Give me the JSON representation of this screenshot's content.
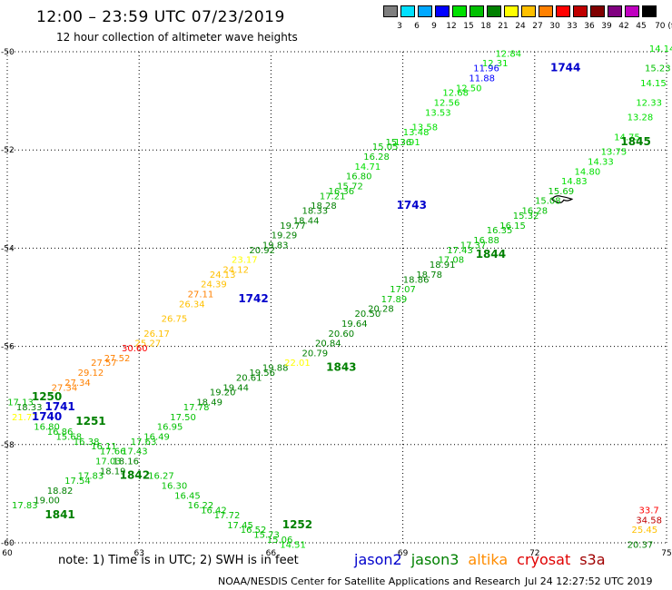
{
  "header": {
    "title": "12:00 – 23:59 UTC 07/23/2019",
    "subtitle": "12 hour collection of altimeter wave heights"
  },
  "color_scale": {
    "labels": [
      "3",
      "6",
      "9",
      "12",
      "15",
      "18",
      "21",
      "24",
      "27",
      "30",
      "33",
      "36",
      "39",
      "42",
      "45",
      "70 (ft)"
    ],
    "colors": [
      "#7f7f7f",
      "#00e0ff",
      "#00a8ff",
      "#0000ff",
      "#00e000",
      "#00c000",
      "#008000",
      "#ffff00",
      "#ffc000",
      "#ff8000",
      "#ff0000",
      "#c00000",
      "#800000",
      "#800080",
      "#c000c0",
      "#000000"
    ]
  },
  "footer": {
    "note": "note: 1) Time is in UTC; 2) SWH is in feet",
    "satellites": [
      {
        "name": "jason2",
        "color": "#0000cc"
      },
      {
        "name": "jason3",
        "color": "#008000"
      },
      {
        "name": "altika",
        "color": "#ff8c00"
      },
      {
        "name": "cryosat",
        "color": "#e00000"
      },
      {
        "name": "s3a",
        "color": "#a00000"
      }
    ],
    "credit": "NOAA/NESDIS Center for Satellite Applications and Research",
    "timestamp": "Jul 24 12:27:52 UTC 2019"
  },
  "chart_data": {
    "type": "scatter",
    "xlim": [
      60,
      75
    ],
    "ylim": [
      -60,
      -50
    ],
    "xticks": [
      60,
      63,
      66,
      69,
      72,
      75
    ],
    "yticks": [
      -50,
      -52,
      -54,
      -56,
      -58,
      -60
    ],
    "land": [
      {
        "lon": 72.6,
        "lat": -53.0
      }
    ],
    "pass_labels": [
      {
        "text": "1744",
        "lon": 72.7,
        "lat": -50.4,
        "color": "#0000cc"
      },
      {
        "text": "1743",
        "lon": 69.2,
        "lat": -53.2,
        "color": "#0000cc"
      },
      {
        "text": "1742",
        "lon": 65.6,
        "lat": -55.1,
        "color": "#0000cc"
      },
      {
        "text": "1741",
        "lon": 61.2,
        "lat": -57.3,
        "color": "#0000cc"
      },
      {
        "text": "1740",
        "lon": 60.9,
        "lat": -57.5,
        "color": "#0000cc"
      },
      {
        "text": "1845",
        "lon": 74.3,
        "lat": -51.9,
        "color": "#008000"
      },
      {
        "text": "1844",
        "lon": 71.0,
        "lat": -54.2,
        "color": "#008000"
      },
      {
        "text": "1843",
        "lon": 67.6,
        "lat": -56.5,
        "color": "#008000"
      },
      {
        "text": "1250",
        "lon": 60.9,
        "lat": -57.1,
        "color": "#008000"
      },
      {
        "text": "1251",
        "lon": 61.9,
        "lat": -57.6,
        "color": "#008000"
      },
      {
        "text": "1842",
        "lon": 62.9,
        "lat": -58.7,
        "color": "#008000"
      },
      {
        "text": "1841",
        "lon": 61.2,
        "lat": -59.5,
        "color": "#008000"
      },
      {
        "text": "1252",
        "lon": 66.6,
        "lat": -59.7,
        "color": "#008000"
      }
    ],
    "points": [
      {
        "lon": 71.4,
        "lat": -50.1,
        "v": "12.84",
        "c": "#00e000"
      },
      {
        "lon": 71.1,
        "lat": -50.3,
        "v": "12.31",
        "c": "#00e000"
      },
      {
        "lon": 70.9,
        "lat": -50.4,
        "v": "11.96",
        "c": "#0000ff"
      },
      {
        "lon": 70.8,
        "lat": -50.6,
        "v": "11.88",
        "c": "#0000ff"
      },
      {
        "lon": 70.5,
        "lat": -50.8,
        "v": "12.50",
        "c": "#00e000"
      },
      {
        "lon": 70.2,
        "lat": -50.9,
        "v": "12.68",
        "c": "#00e000"
      },
      {
        "lon": 70.0,
        "lat": -51.1,
        "v": "12.56",
        "c": "#00e000"
      },
      {
        "lon": 69.8,
        "lat": -51.3,
        "v": "13.53",
        "c": "#00e000"
      },
      {
        "lon": 69.5,
        "lat": -51.6,
        "v": "13.58",
        "c": "#00e000"
      },
      {
        "lon": 69.3,
        "lat": -51.7,
        "v": "13.48",
        "c": "#00e000"
      },
      {
        "lon": 69.1,
        "lat": -51.9,
        "v": "13.91",
        "c": "#00e000"
      },
      {
        "lon": 68.9,
        "lat": -51.9,
        "v": "15.36",
        "c": "#00c000"
      },
      {
        "lon": 68.6,
        "lat": -52.0,
        "v": "15.05",
        "c": "#00c000"
      },
      {
        "lon": 68.4,
        "lat": -52.2,
        "v": "16.28",
        "c": "#00c000"
      },
      {
        "lon": 68.2,
        "lat": -52.4,
        "v": "14.71",
        "c": "#00e000"
      },
      {
        "lon": 68.0,
        "lat": -52.6,
        "v": "16.80",
        "c": "#00c000"
      },
      {
        "lon": 67.8,
        "lat": -52.8,
        "v": "15.72",
        "c": "#00c000"
      },
      {
        "lon": 67.6,
        "lat": -52.9,
        "v": "16.36",
        "c": "#00c000"
      },
      {
        "lon": 67.4,
        "lat": -53.0,
        "v": "17.21",
        "c": "#00c000"
      },
      {
        "lon": 67.2,
        "lat": -53.2,
        "v": "18.28",
        "c": "#008000"
      },
      {
        "lon": 67.0,
        "lat": -53.3,
        "v": "18.33",
        "c": "#008000"
      },
      {
        "lon": 66.8,
        "lat": -53.5,
        "v": "18.44",
        "c": "#008000"
      },
      {
        "lon": 66.5,
        "lat": -53.6,
        "v": "19.77",
        "c": "#008000"
      },
      {
        "lon": 66.3,
        "lat": -53.8,
        "v": "19.29",
        "c": "#008000"
      },
      {
        "lon": 66.1,
        "lat": -54.0,
        "v": "19.83",
        "c": "#008000"
      },
      {
        "lon": 65.8,
        "lat": -54.1,
        "v": "20.92",
        "c": "#008000"
      },
      {
        "lon": 65.4,
        "lat": -54.3,
        "v": "23.17",
        "c": "#ffff00"
      },
      {
        "lon": 65.2,
        "lat": -54.5,
        "v": "24.12",
        "c": "#ffc000"
      },
      {
        "lon": 64.9,
        "lat": -54.6,
        "v": "24.13",
        "c": "#ffc000"
      },
      {
        "lon": 64.7,
        "lat": -54.8,
        "v": "24.39",
        "c": "#ffc000"
      },
      {
        "lon": 64.4,
        "lat": -55.0,
        "v": "27.11",
        "c": "#ff8000"
      },
      {
        "lon": 64.2,
        "lat": -55.2,
        "v": "26.34",
        "c": "#ffc000"
      },
      {
        "lon": 63.8,
        "lat": -55.5,
        "v": "26.75",
        "c": "#ffc000"
      },
      {
        "lon": 63.4,
        "lat": -55.8,
        "v": "26.17",
        "c": "#ffc000"
      },
      {
        "lon": 63.2,
        "lat": -56.0,
        "v": "25.27",
        "c": "#ffc000"
      },
      {
        "lon": 62.9,
        "lat": -56.1,
        "v": "30.60",
        "c": "#ff0000"
      },
      {
        "lon": 62.5,
        "lat": -56.3,
        "v": "27.52",
        "c": "#ff8000"
      },
      {
        "lon": 62.2,
        "lat": -56.4,
        "v": "27.57",
        "c": "#ff8000"
      },
      {
        "lon": 61.9,
        "lat": -56.6,
        "v": "29.12",
        "c": "#ff8000"
      },
      {
        "lon": 61.6,
        "lat": -56.8,
        "v": "27.34",
        "c": "#ff8000"
      },
      {
        "lon": 61.3,
        "lat": -56.9,
        "v": "27.34",
        "c": "#ff8000"
      },
      {
        "lon": 60.3,
        "lat": -57.2,
        "v": "17.13",
        "c": "#00c000"
      },
      {
        "lon": 60.5,
        "lat": -57.3,
        "v": "18.33",
        "c": "#008000"
      },
      {
        "lon": 60.4,
        "lat": -57.5,
        "v": "21.77",
        "c": "#ffff00"
      },
      {
        "lon": 60.9,
        "lat": -57.7,
        "v": "16.80",
        "c": "#00c000"
      },
      {
        "lon": 61.2,
        "lat": -57.8,
        "v": "16.86",
        "c": "#00c000"
      },
      {
        "lon": 61.4,
        "lat": -57.9,
        "v": "15.68",
        "c": "#00c000"
      },
      {
        "lon": 61.8,
        "lat": -58.0,
        "v": "16.38",
        "c": "#00c000"
      },
      {
        "lon": 62.2,
        "lat": -58.1,
        "v": "16.11",
        "c": "#00c000"
      },
      {
        "lon": 62.4,
        "lat": -58.2,
        "v": "17.66",
        "c": "#00c000"
      },
      {
        "lon": 62.3,
        "lat": -58.4,
        "v": "17.03",
        "c": "#00c000"
      },
      {
        "lon": 62.7,
        "lat": -58.4,
        "v": "18.16",
        "c": "#008000"
      },
      {
        "lon": 62.9,
        "lat": -58.2,
        "v": "17.43",
        "c": "#00c000"
      },
      {
        "lon": 63.1,
        "lat": -58.0,
        "v": "17.63",
        "c": "#00c000"
      },
      {
        "lon": 63.4,
        "lat": -57.9,
        "v": "16.49",
        "c": "#00c000"
      },
      {
        "lon": 63.7,
        "lat": -57.7,
        "v": "16.95",
        "c": "#00c000"
      },
      {
        "lon": 64.0,
        "lat": -57.5,
        "v": "17.50",
        "c": "#00c000"
      },
      {
        "lon": 64.3,
        "lat": -57.3,
        "v": "17.78",
        "c": "#00c000"
      },
      {
        "lon": 64.6,
        "lat": -57.2,
        "v": "18.49",
        "c": "#008000"
      },
      {
        "lon": 64.9,
        "lat": -57.0,
        "v": "19.20",
        "c": "#008000"
      },
      {
        "lon": 65.2,
        "lat": -56.9,
        "v": "19.44",
        "c": "#008000"
      },
      {
        "lon": 65.5,
        "lat": -56.7,
        "v": "20.61",
        "c": "#008000"
      },
      {
        "lon": 65.8,
        "lat": -56.6,
        "v": "19.56",
        "c": "#008000"
      },
      {
        "lon": 66.1,
        "lat": -56.5,
        "v": "19.88",
        "c": "#008000"
      },
      {
        "lon": 66.6,
        "lat": -56.4,
        "v": "22.01",
        "c": "#ffff00"
      },
      {
        "lon": 67.0,
        "lat": -56.2,
        "v": "20.79",
        "c": "#008000"
      },
      {
        "lon": 67.3,
        "lat": -56.0,
        "v": "20.84",
        "c": "#008000"
      },
      {
        "lon": 67.6,
        "lat": -55.8,
        "v": "20.60",
        "c": "#008000"
      },
      {
        "lon": 67.9,
        "lat": -55.6,
        "v": "19.64",
        "c": "#008000"
      },
      {
        "lon": 68.2,
        "lat": -55.4,
        "v": "20.50",
        "c": "#008000"
      },
      {
        "lon": 68.5,
        "lat": -55.3,
        "v": "20.28",
        "c": "#008000"
      },
      {
        "lon": 68.8,
        "lat": -55.1,
        "v": "17.89",
        "c": "#00c000"
      },
      {
        "lon": 69.0,
        "lat": -54.9,
        "v": "17.07",
        "c": "#00c000"
      },
      {
        "lon": 69.3,
        "lat": -54.7,
        "v": "18.86",
        "c": "#008000"
      },
      {
        "lon": 69.6,
        "lat": -54.6,
        "v": "18.78",
        "c": "#008000"
      },
      {
        "lon": 69.9,
        "lat": -54.4,
        "v": "18.91",
        "c": "#008000"
      },
      {
        "lon": 70.1,
        "lat": -54.3,
        "v": "17.08",
        "c": "#00c000"
      },
      {
        "lon": 70.3,
        "lat": -54.1,
        "v": "17.43",
        "c": "#00c000"
      },
      {
        "lon": 70.6,
        "lat": -54.0,
        "v": "17.37",
        "c": "#00c000"
      },
      {
        "lon": 70.9,
        "lat": -53.9,
        "v": "16.88",
        "c": "#00c000"
      },
      {
        "lon": 71.2,
        "lat": -53.7,
        "v": "16.35",
        "c": "#00c000"
      },
      {
        "lon": 71.5,
        "lat": -53.6,
        "v": "16.15",
        "c": "#00c000"
      },
      {
        "lon": 71.8,
        "lat": -53.4,
        "v": "15.32",
        "c": "#00c000"
      },
      {
        "lon": 72.0,
        "lat": -53.3,
        "v": "16.28",
        "c": "#00c000"
      },
      {
        "lon": 72.3,
        "lat": -53.1,
        "v": "15.08",
        "c": "#00c000"
      },
      {
        "lon": 72.6,
        "lat": -52.9,
        "v": "15.69",
        "c": "#00c000"
      },
      {
        "lon": 72.9,
        "lat": -52.7,
        "v": "14.83",
        "c": "#00e000"
      },
      {
        "lon": 73.2,
        "lat": -52.5,
        "v": "14.80",
        "c": "#00e000"
      },
      {
        "lon": 73.5,
        "lat": -52.3,
        "v": "14.33",
        "c": "#00e000"
      },
      {
        "lon": 73.8,
        "lat": -52.1,
        "v": "13.75",
        "c": "#00e000"
      },
      {
        "lon": 74.1,
        "lat": -51.8,
        "v": "14.75",
        "c": "#00e000"
      },
      {
        "lon": 74.4,
        "lat": -51.4,
        "v": "13.28",
        "c": "#00e000"
      },
      {
        "lon": 74.6,
        "lat": -51.1,
        "v": "12.33",
        "c": "#00e000"
      },
      {
        "lon": 74.7,
        "lat": -50.7,
        "v": "14.15",
        "c": "#00e000"
      },
      {
        "lon": 74.8,
        "lat": -50.4,
        "v": "15.23",
        "c": "#00c000"
      },
      {
        "lon": 74.9,
        "lat": -50.0,
        "v": "14.14",
        "c": "#00e000"
      },
      {
        "lon": 60.4,
        "lat": -59.3,
        "v": "17.83",
        "c": "#00c000"
      },
      {
        "lon": 60.9,
        "lat": -59.2,
        "v": "19.00",
        "c": "#008000"
      },
      {
        "lon": 61.2,
        "lat": -59.0,
        "v": "18.82",
        "c": "#008000"
      },
      {
        "lon": 61.6,
        "lat": -58.8,
        "v": "17.54",
        "c": "#00c000"
      },
      {
        "lon": 61.9,
        "lat": -58.7,
        "v": "17.83",
        "c": "#00c000"
      },
      {
        "lon": 62.4,
        "lat": -58.6,
        "v": "18.19",
        "c": "#008000"
      },
      {
        "lon": 63.5,
        "lat": -58.7,
        "v": "16.27",
        "c": "#00c000"
      },
      {
        "lon": 63.8,
        "lat": -58.9,
        "v": "16.30",
        "c": "#00c000"
      },
      {
        "lon": 64.1,
        "lat": -59.1,
        "v": "16.45",
        "c": "#00c000"
      },
      {
        "lon": 64.4,
        "lat": -59.3,
        "v": "16.22",
        "c": "#00c000"
      },
      {
        "lon": 64.7,
        "lat": -59.4,
        "v": "16.42",
        "c": "#00c000"
      },
      {
        "lon": 65.0,
        "lat": -59.5,
        "v": "17.72",
        "c": "#00c000"
      },
      {
        "lon": 65.3,
        "lat": -59.7,
        "v": "17.45",
        "c": "#00c000"
      },
      {
        "lon": 65.6,
        "lat": -59.8,
        "v": "16.52",
        "c": "#00c000"
      },
      {
        "lon": 65.9,
        "lat": -59.9,
        "v": "15.73",
        "c": "#00c000"
      },
      {
        "lon": 66.2,
        "lat": -60.0,
        "v": "15.06",
        "c": "#00c000"
      },
      {
        "lon": 66.5,
        "lat": -60.1,
        "v": "14.51",
        "c": "#00e000"
      },
      {
        "lon": 74.6,
        "lat": -59.4,
        "v": "33.7",
        "c": "#ff0000"
      },
      {
        "lon": 74.6,
        "lat": -59.6,
        "v": "34.58",
        "c": "#c00000"
      },
      {
        "lon": 74.5,
        "lat": -59.8,
        "v": "25.45",
        "c": "#ffc000"
      },
      {
        "lon": 74.4,
        "lat": -60.1,
        "v": "20.37",
        "c": "#008000"
      }
    ]
  }
}
